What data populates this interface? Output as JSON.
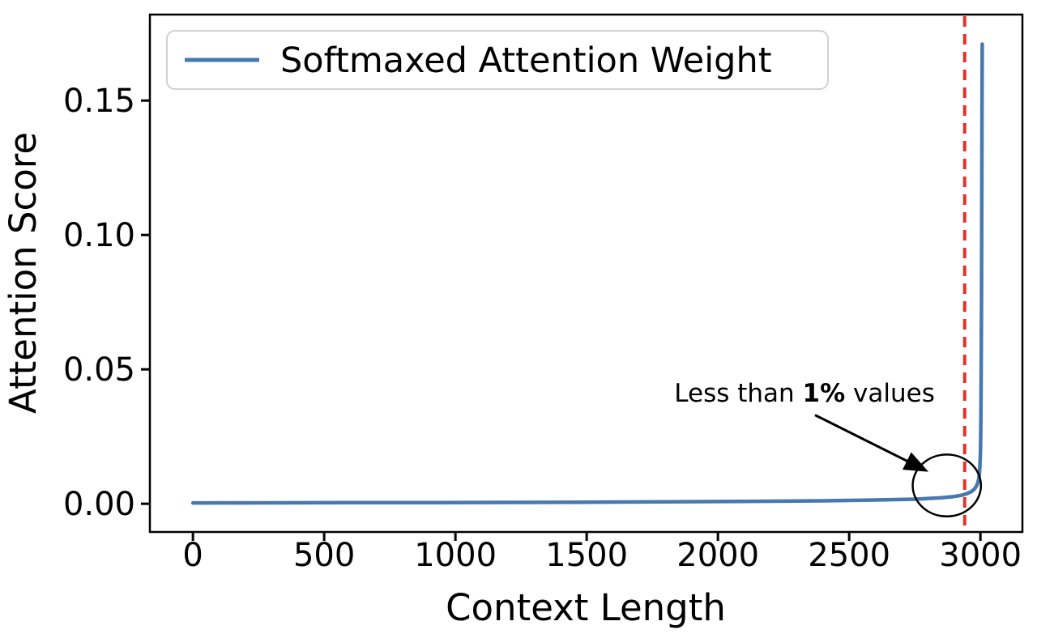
{
  "figure": {
    "background": "#ffffff"
  },
  "chart_data": {
    "type": "line",
    "title": "",
    "xlabel": "Context Length",
    "ylabel": "Attention Score",
    "xlim": [
      -164,
      3160
    ],
    "ylim": [
      -0.0105,
      0.182
    ],
    "xticks": [
      0,
      500,
      1000,
      1500,
      2000,
      2500,
      3000
    ],
    "xtick_labels": [
      "0",
      "500",
      "1000",
      "1500",
      "2000",
      "2500",
      "3000"
    ],
    "yticks": [
      0.0,
      0.05,
      0.1,
      0.15
    ],
    "ytick_labels": [
      "0.00",
      "0.05",
      "0.10",
      "0.15"
    ],
    "grid": false,
    "legend_position": "upper-left",
    "series": [
      {
        "name": "Softmaxed Attention Weight",
        "color": "#4878b0",
        "linewidth": 4.5,
        "points": [
          [
            0,
            0.0003
          ],
          [
            300,
            0.00035
          ],
          [
            600,
            0.0004
          ],
          [
            900,
            0.00045
          ],
          [
            1200,
            0.0005
          ],
          [
            1500,
            0.0006
          ],
          [
            1800,
            0.0007
          ],
          [
            2100,
            0.0009
          ],
          [
            2400,
            0.0011
          ],
          [
            2600,
            0.0014
          ],
          [
            2750,
            0.0017
          ],
          [
            2850,
            0.0022
          ],
          [
            2900,
            0.0027
          ],
          [
            2930,
            0.0032
          ],
          [
            2950,
            0.0038
          ],
          [
            2965,
            0.0045
          ],
          [
            2975,
            0.0053
          ],
          [
            2983,
            0.0063
          ],
          [
            2989,
            0.0075
          ],
          [
            2993,
            0.009
          ],
          [
            2996,
            0.011
          ],
          [
            2998,
            0.014
          ],
          [
            3000,
            0.019
          ],
          [
            3001,
            0.025
          ],
          [
            3002,
            0.034
          ],
          [
            3003,
            0.05
          ],
          [
            3004,
            0.075
          ],
          [
            3005,
            0.11
          ],
          [
            3006,
            0.145
          ],
          [
            3007,
            0.171
          ]
        ]
      }
    ],
    "vline": {
      "x": 2940,
      "color": "#e0342b",
      "style": "dashed"
    },
    "annotation": {
      "text_prefix": "Less than ",
      "text_bold": "1%",
      "text_suffix": " values",
      "text_xy": [
        2330,
        0.038
      ],
      "arrow_start": [
        2370,
        0.033
      ],
      "arrow_end": [
        2790,
        0.0125
      ],
      "arrow_color": "#000000",
      "circle": {
        "cx": 2872,
        "cy": 0.0068,
        "rx": 130,
        "ry": 0.0115,
        "color": "#000000"
      }
    }
  }
}
